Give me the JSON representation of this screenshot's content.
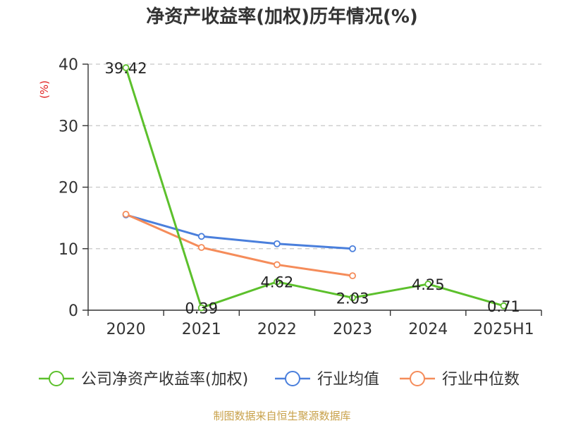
{
  "chart_data": {
    "type": "line",
    "title": "净资产收益率(加权)历年情况(%)",
    "ylabel": "(%)",
    "xlabel": "",
    "categories": [
      "2020",
      "2021",
      "2022",
      "2023",
      "2024",
      "2025H1"
    ],
    "ylim": [
      0,
      40
    ],
    "yticks": [
      0,
      10,
      20,
      30,
      40
    ],
    "grid": true,
    "legend_position": "bottom",
    "series": [
      {
        "name": "公司净资产收益率(加权)",
        "color": "#5cc02c",
        "values": [
          39.42,
          0.39,
          4.62,
          2.03,
          4.25,
          0.71
        ],
        "labels": [
          "39.42",
          "0.39",
          "4.62",
          "2.03",
          "4.25",
          "0.71"
        ]
      },
      {
        "name": "行业均值",
        "color": "#4a7fdc",
        "values": [
          15.5,
          12.0,
          10.8,
          10.0,
          null,
          null
        ]
      },
      {
        "name": "行业中位数",
        "color": "#f58c5a",
        "values": [
          15.6,
          10.2,
          7.4,
          5.6,
          null,
          null
        ]
      }
    ]
  },
  "source": "制图数据来自恒生聚源数据库"
}
